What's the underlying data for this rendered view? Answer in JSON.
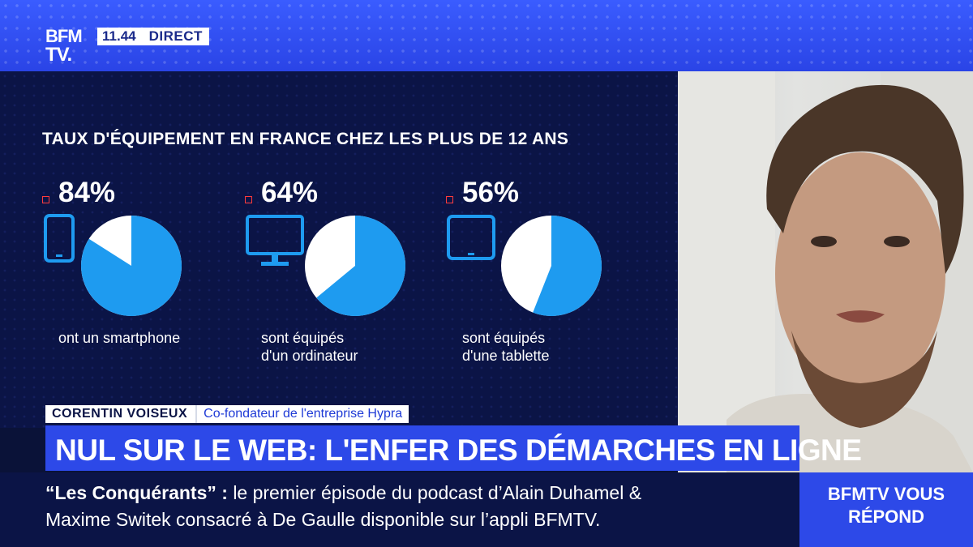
{
  "broadcast": {
    "logo_line1": "BFM",
    "logo_line2": "TV.",
    "time": "11.44",
    "live_label": "DIRECT"
  },
  "chart_data": {
    "type": "pie",
    "title": "TAUX D'ÉQUIPEMENT EN FRANCE CHEZ LES PLUS DE 12 ANS",
    "items": [
      {
        "label": "84%",
        "value": 84,
        "caption": [
          "ont un smartphone"
        ],
        "icon": "smartphone-icon"
      },
      {
        "label": "64%",
        "value": 64,
        "caption": [
          "sont équipés",
          "d'un ordinateur"
        ],
        "icon": "monitor-icon"
      },
      {
        "label": "56%",
        "value": 56,
        "caption": [
          "sont équipés",
          "d'une tablette"
        ],
        "icon": "tablet-icon"
      }
    ],
    "colors": {
      "filled": "#1e9bf0",
      "remainder": "#ffffff"
    }
  },
  "lower_third": {
    "name": "CORENTIN VOISEUX",
    "role": "Co-fondateur de l'entreprise Hypra",
    "headline": "NUL SUR LE WEB: L'ENFER DES DÉMARCHES EN LIGNE"
  },
  "ticker": {
    "highlight": "“Les Conquérants”  :",
    "line1_rest": "le premier épisode du podcast d’Alain Duhamel &",
    "line2": "Maxime Switek consacré à De Gaulle disponible sur l’appli BFMTV."
  },
  "brand_box": {
    "line1": "BFMTV VOUS",
    "line2": "RÉPOND"
  }
}
